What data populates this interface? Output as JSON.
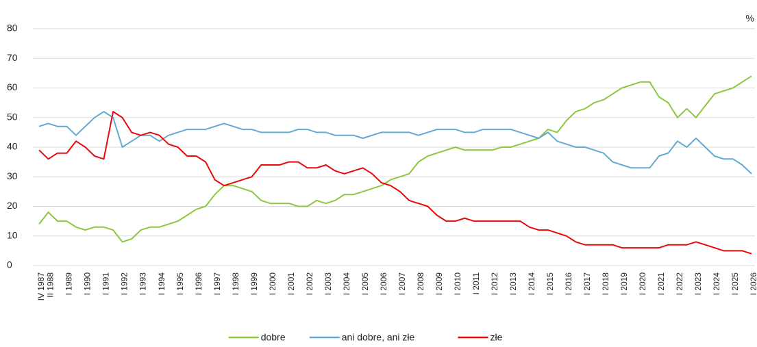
{
  "chart_data": {
    "type": "line",
    "unit_label": "%",
    "categories": [
      "IV 1987",
      "II 1988",
      null,
      "I 1989",
      null,
      "I 1990",
      null,
      "I 1991",
      null,
      "I 1992",
      null,
      "I 1993",
      null,
      "I 1994",
      null,
      "I 1995",
      null,
      "I 1996",
      null,
      "I 1997",
      null,
      "I 1998",
      null,
      "I 1999",
      null,
      "I 2000",
      null,
      "I 2001",
      null,
      "I 2002",
      null,
      "I 2003",
      null,
      "I 2004",
      null,
      "I 2005",
      null,
      "I 2006",
      null,
      "I 2007",
      null,
      "I 2008",
      null,
      "I 2009",
      null,
      "I 2010",
      null,
      "I 2011",
      null,
      "I 2012",
      null,
      "I 2013",
      null,
      "I 2014",
      null,
      "I 2015",
      null,
      "I 2016",
      null,
      "I 2017",
      null,
      "I 2018",
      null,
      "I 2019",
      null,
      "I 2020",
      null,
      "I 2021",
      null,
      "I 2022",
      null,
      "I 2023",
      null,
      "I 2024",
      null,
      "I 2025",
      null,
      "I 2026"
    ],
    "series": [
      {
        "name": "dobre",
        "color": "#8dc63f",
        "values": [
          14,
          18,
          15,
          15,
          13,
          12,
          13,
          13,
          12,
          8,
          9,
          12,
          13,
          13,
          14,
          15,
          17,
          19,
          20,
          24,
          27,
          27,
          26,
          25,
          22,
          21,
          21,
          21,
          20,
          20,
          22,
          21,
          22,
          24,
          24,
          25,
          26,
          27,
          29,
          30,
          31,
          35,
          37,
          38,
          39,
          40,
          39,
          39,
          39,
          39,
          40,
          40,
          41,
          42,
          43,
          46,
          45,
          49,
          52,
          53,
          55,
          56,
          58,
          60,
          61,
          62,
          62,
          57,
          55,
          50,
          53,
          50,
          54,
          58,
          59,
          60,
          62,
          64
        ]
      },
      {
        "name": "ani dobre, ani złe",
        "color": "#63a9d2",
        "values": [
          47,
          48,
          47,
          47,
          44,
          47,
          50,
          52,
          50,
          40,
          42,
          44,
          44,
          42,
          44,
          45,
          46,
          46,
          46,
          47,
          48,
          47,
          46,
          46,
          45,
          45,
          45,
          45,
          46,
          46,
          45,
          45,
          44,
          44,
          44,
          43,
          44,
          45,
          45,
          45,
          45,
          44,
          45,
          46,
          46,
          46,
          45,
          45,
          46,
          46,
          46,
          46,
          45,
          44,
          43,
          45,
          42,
          41,
          40,
          40,
          39,
          38,
          35,
          34,
          33,
          33,
          33,
          37,
          38,
          42,
          40,
          43,
          40,
          37,
          36,
          36,
          34,
          31
        ]
      },
      {
        "name": "złe",
        "color": "#e8090b",
        "values": [
          39,
          36,
          38,
          38,
          42,
          40,
          37,
          36,
          52,
          50,
          45,
          44,
          45,
          44,
          41,
          40,
          37,
          37,
          35,
          29,
          27,
          28,
          29,
          30,
          34,
          34,
          34,
          35,
          35,
          33,
          33,
          34,
          32,
          31,
          32,
          33,
          31,
          28,
          27,
          25,
          22,
          21,
          20,
          17,
          15,
          15,
          16,
          15,
          15,
          15,
          15,
          15,
          15,
          13,
          12,
          12,
          11,
          10,
          8,
          7,
          7,
          7,
          7,
          6,
          6,
          6,
          6,
          6,
          7,
          7,
          7,
          8,
          7,
          6,
          5,
          5,
          5,
          4
        ]
      }
    ],
    "ylim": [
      0,
      80
    ],
    "yticks": [
      0,
      10,
      20,
      30,
      40,
      50,
      60,
      70,
      80
    ],
    "grid": true,
    "legend": "bottom"
  }
}
